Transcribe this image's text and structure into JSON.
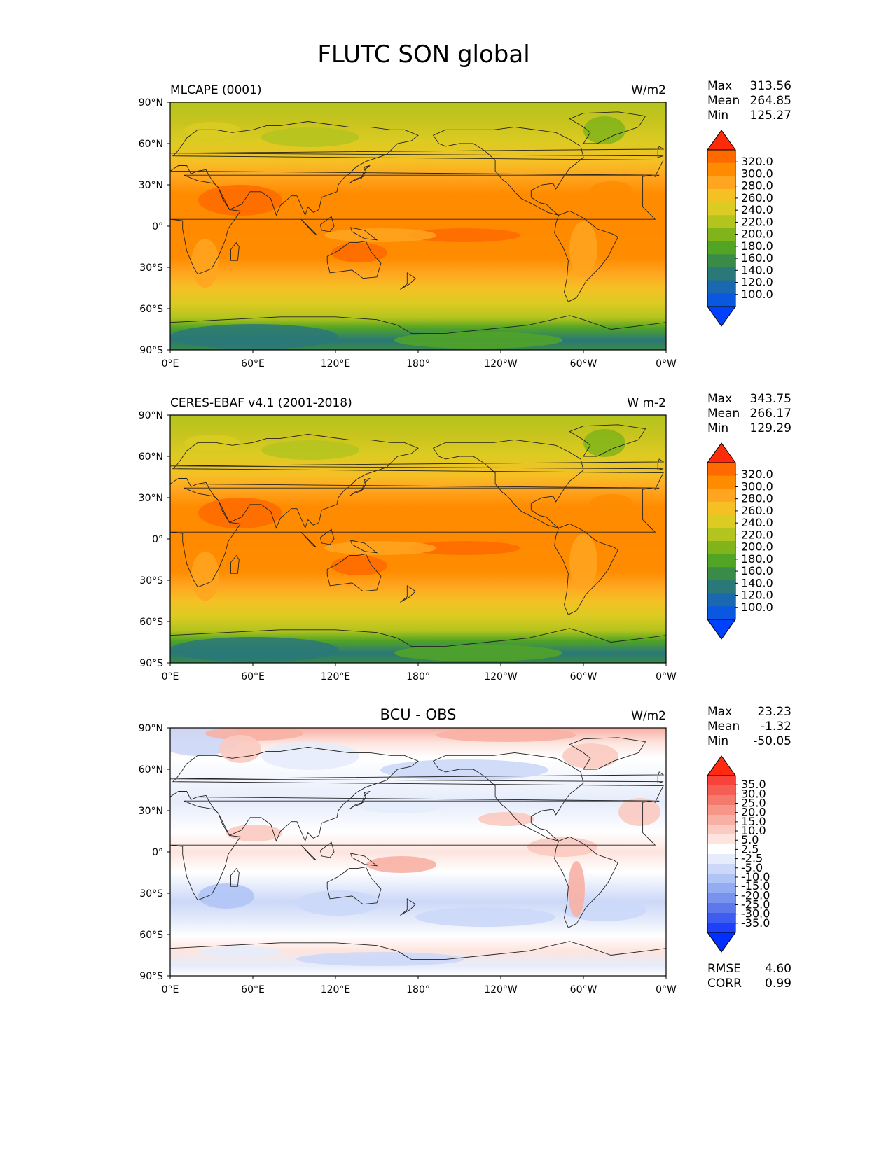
{
  "figure": {
    "title": "FLUTC SON global"
  },
  "axes": {
    "lat_ticks": [
      "90°N",
      "60°N",
      "30°N",
      "0°",
      "30°S",
      "60°S",
      "90°S"
    ],
    "lon_ticks": [
      "0°E",
      "60°E",
      "120°E",
      "180°",
      "120°W",
      "60°W",
      "0°W"
    ]
  },
  "panels": [
    {
      "title_left": "MLCAPE (0001)",
      "title_center": "",
      "units": "W/m2",
      "stats": [
        {
          "label": "Max",
          "value": "313.56"
        },
        {
          "label": "Mean",
          "value": "264.85"
        },
        {
          "label": "Min",
          "value": "125.27"
        }
      ],
      "field": "model",
      "colorbar": {
        "ticks": [
          "320.0",
          "300.0",
          "280.0",
          "260.0",
          "240.0",
          "220.0",
          "200.0",
          "180.0",
          "160.0",
          "140.0",
          "120.0",
          "100.0"
        ],
        "colors": [
          "#ff2a08",
          "#ff6a00",
          "#ff8c00",
          "#ffa520",
          "#f5c024",
          "#dccb22",
          "#b4c41e",
          "#80b41a",
          "#52a424",
          "#3a8a48",
          "#2a7878",
          "#1a68b0",
          "#0a58e0",
          "#0040ff"
        ]
      },
      "extra": []
    },
    {
      "title_left": "CERES-EBAF v4.1 (2001-2018)",
      "title_center": "",
      "units": "W m-2",
      "stats": [
        {
          "label": "Max",
          "value": "343.75"
        },
        {
          "label": "Mean",
          "value": "266.17"
        },
        {
          "label": "Min",
          "value": "129.29"
        }
      ],
      "field": "obs",
      "colorbar": {
        "ticks": [
          "320.0",
          "300.0",
          "280.0",
          "260.0",
          "240.0",
          "220.0",
          "200.0",
          "180.0",
          "160.0",
          "140.0",
          "120.0",
          "100.0"
        ],
        "colors": [
          "#ff2a08",
          "#ff6a00",
          "#ff8c00",
          "#ffa520",
          "#f5c024",
          "#dccb22",
          "#b4c41e",
          "#80b41a",
          "#52a424",
          "#3a8a48",
          "#2a7878",
          "#1a68b0",
          "#0a58e0",
          "#0040ff"
        ]
      },
      "extra": []
    },
    {
      "title_left": "",
      "title_center": "BCU - OBS",
      "units": "W/m2",
      "stats": [
        {
          "label": "Max",
          "value": "23.23"
        },
        {
          "label": "Mean",
          "value": "-1.32"
        },
        {
          "label": "Min",
          "value": "-50.05"
        }
      ],
      "field": "diff",
      "colorbar": {
        "ticks": [
          "35.0",
          "30.0",
          "25.0",
          "20.0",
          "15.0",
          "10.0",
          "5.0",
          "2.5",
          "-2.5",
          "-5.0",
          "-10.0",
          "-15.0",
          "-20.0",
          "-25.0",
          "-30.0",
          "-35.0"
        ],
        "colors": [
          "#ff2a10",
          "#f8423a",
          "#f45e54",
          "#f47a6e",
          "#f69688",
          "#f8b0a4",
          "#fbcac0",
          "#fde4de",
          "#ffffff",
          "#e6ecfb",
          "#ccd8f8",
          "#b0c4f6",
          "#94acf2",
          "#7892ee",
          "#5c78ea",
          "#3e5cf0",
          "#1e40f8",
          "#0030ff"
        ]
      },
      "extra": [
        {
          "label": "RMSE",
          "value": "4.60"
        },
        {
          "label": "CORR",
          "value": "0.99"
        }
      ]
    }
  ]
}
